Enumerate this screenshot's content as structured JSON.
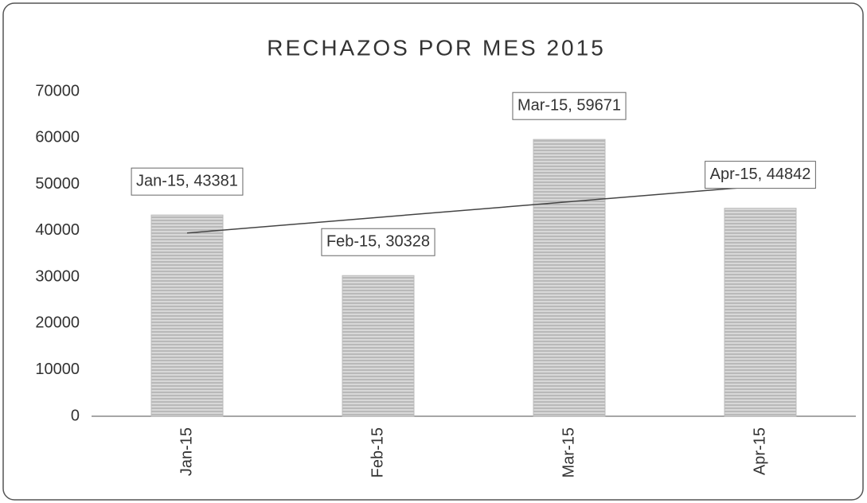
{
  "chart_data": {
    "type": "bar",
    "title": "RECHAZOS POR MES 2015",
    "categories": [
      "Jan-15",
      "Feb-15",
      "Mar-15",
      "Apr-15"
    ],
    "values": [
      43381,
      30328,
      59671,
      44842
    ],
    "value_labels": [
      "Jan-15, 43381",
      "Feb-15, 30328",
      "Mar-15, 59671",
      "Apr-15, 44842"
    ],
    "color": "#c8c8c8",
    "trendline": "linear",
    "ylim": [
      0,
      70000
    ],
    "yticks": [
      0,
      10000,
      20000,
      30000,
      40000,
      50000,
      60000,
      70000
    ]
  }
}
